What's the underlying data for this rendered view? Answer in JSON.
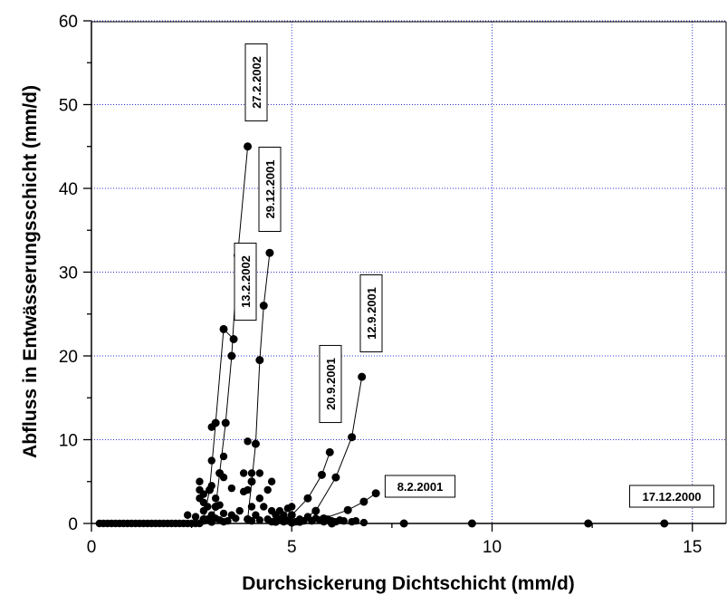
{
  "chart_data": {
    "type": "scatter",
    "xlabel": "Durchsickerung Dichtschicht (mm/d)",
    "ylabel": "Abfluss in Entwässerungsschicht (mm/d)",
    "xlim": [
      0,
      16
    ],
    "ylim": [
      0,
      60
    ],
    "x_ticks": [
      0,
      5,
      10,
      15
    ],
    "y_ticks": [
      0,
      10,
      20,
      30,
      40,
      50,
      60
    ],
    "grid": "dotted blue at major ticks",
    "marker_color": "#000000",
    "grid_color": "#3333cc",
    "events": [
      {
        "label": "27.2.2002",
        "x": [
          3.0,
          3.1,
          3.2,
          3.35,
          3.5,
          3.65,
          3.9
        ],
        "y": [
          0.2,
          2.0,
          6.0,
          12.0,
          20.0,
          32.0,
          45.0
        ]
      },
      {
        "label": "29.12.2001",
        "x": [
          3.9,
          4.0,
          4.1,
          4.2,
          4.3,
          4.45
        ],
        "y": [
          0.5,
          5.0,
          9.5,
          19.5,
          26.0,
          32.3
        ]
      },
      {
        "label": "13.2.2002",
        "x": [
          2.8,
          2.95,
          3.1,
          3.3,
          3.55
        ],
        "y": [
          0.5,
          4.0,
          12.0,
          23.2,
          22.0
        ]
      },
      {
        "label": "12.9.2001",
        "x": [
          5.2,
          5.6,
          6.1,
          6.5,
          6.75
        ],
        "y": [
          0.2,
          1.5,
          5.5,
          10.3,
          17.5
        ]
      },
      {
        "label": "20.9.2001",
        "x": [
          4.6,
          5.0,
          5.4,
          5.75,
          5.95
        ],
        "y": [
          0.2,
          1.0,
          3.0,
          5.8,
          8.5
        ]
      },
      {
        "label": "8.2.2001",
        "x": [
          5.0,
          5.8,
          6.4,
          6.8,
          7.1
        ],
        "y": [
          0.1,
          0.6,
          1.6,
          2.6,
          3.6
        ]
      },
      {
        "label": "17.12.2000",
        "x": [
          6.0,
          7.8,
          9.5,
          12.4,
          14.3
        ],
        "y": [
          0.0,
          0.0,
          0.0,
          0.0,
          0.0
        ]
      }
    ],
    "extra_points": {
      "x": [
        0.2,
        0.3,
        0.4,
        0.5,
        0.6,
        0.7,
        0.8,
        0.9,
        1.0,
        1.1,
        1.2,
        1.3,
        1.4,
        1.5,
        1.6,
        1.7,
        1.8,
        1.9,
        2.0,
        2.1,
        2.2,
        2.3,
        2.4,
        2.5,
        2.6,
        2.7,
        2.4,
        2.6,
        2.7,
        2.7,
        2.7,
        2.8,
        2.8,
        2.8,
        2.8,
        2.9,
        2.9,
        3.0,
        3.0,
        3.0,
        3.0,
        3.0,
        3.1,
        3.1,
        3.2,
        3.2,
        3.2,
        3.3,
        3.3,
        3.3,
        3.3,
        3.4,
        3.5,
        3.5,
        3.6,
        3.7,
        3.8,
        3.8,
        3.9,
        3.9,
        4.0,
        4.0,
        4.0,
        4.1,
        4.2,
        4.2,
        4.2,
        4.3,
        4.4,
        4.4,
        4.5,
        4.5,
        4.5,
        4.6,
        4.6,
        4.7,
        4.7,
        4.8,
        4.8,
        4.9,
        4.9,
        5.0,
        5.0,
        5.1,
        5.2,
        5.3,
        5.4,
        5.5,
        5.6,
        5.7,
        5.8,
        5.9,
        6.0,
        6.1,
        6.2,
        6.3,
        6.5,
        6.6,
        6.8
      ],
      "y": [
        0.0,
        0.0,
        0.0,
        0.0,
        0.0,
        0.0,
        0.0,
        0.0,
        0.0,
        0.0,
        0.0,
        0.0,
        0.0,
        0.0,
        0.0,
        0.0,
        0.0,
        0.0,
        0.0,
        0.0,
        0.0,
        0.0,
        0.0,
        0.0,
        0.0,
        0.0,
        1.0,
        0.8,
        3.0,
        4.0,
        5.0,
        0.3,
        1.5,
        2.5,
        3.5,
        0.5,
        2.0,
        0.2,
        1.0,
        4.5,
        7.5,
        11.5,
        0.6,
        3.0,
        0.4,
        2.2,
        6.0,
        0.2,
        1.2,
        5.5,
        8.0,
        0.3,
        1.0,
        4.2,
        0.6,
        1.5,
        3.8,
        6.0,
        4.0,
        9.8,
        0.3,
        2.0,
        6.0,
        1.0,
        0.4,
        3.0,
        6.0,
        2.0,
        0.5,
        4.0,
        0.2,
        1.5,
        5.0,
        0.3,
        1.0,
        0.5,
        1.5,
        0.2,
        1.0,
        0.3,
        1.8,
        0.1,
        2.0,
        0.2,
        0.5,
        0.3,
        0.8,
        0.3,
        0.6,
        0.4,
        0.2,
        0.5,
        0.3,
        0.2,
        0.4,
        0.3,
        0.2,
        0.3,
        0.1
      ]
    }
  }
}
